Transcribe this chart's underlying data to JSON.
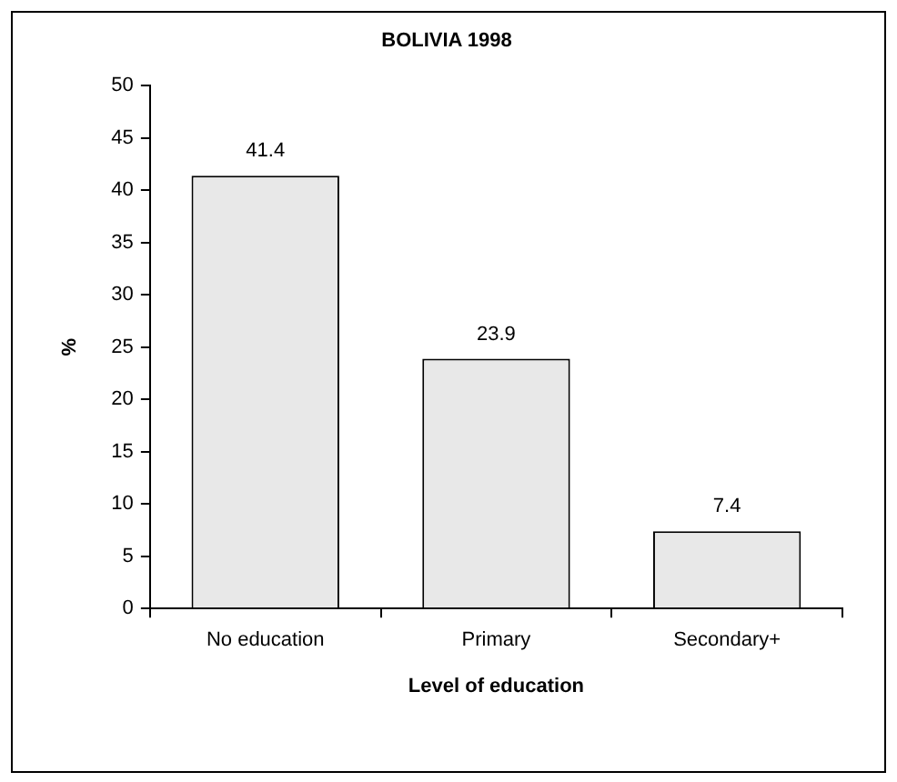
{
  "chart_data": {
    "type": "bar",
    "title": "BOLIVIA 1998",
    "xlabel": "Level of education",
    "ylabel": "%",
    "categories": [
      "No education",
      "Primary",
      "Secondary+"
    ],
    "values": [
      41.4,
      23.9,
      7.4
    ],
    "color": "#e8e8e8",
    "ylim": [
      0,
      50
    ],
    "yticks": [
      0,
      5,
      10,
      15,
      20,
      25,
      30,
      35,
      40,
      45,
      50
    ],
    "grid": false,
    "legend": false,
    "data_labels": true
  }
}
